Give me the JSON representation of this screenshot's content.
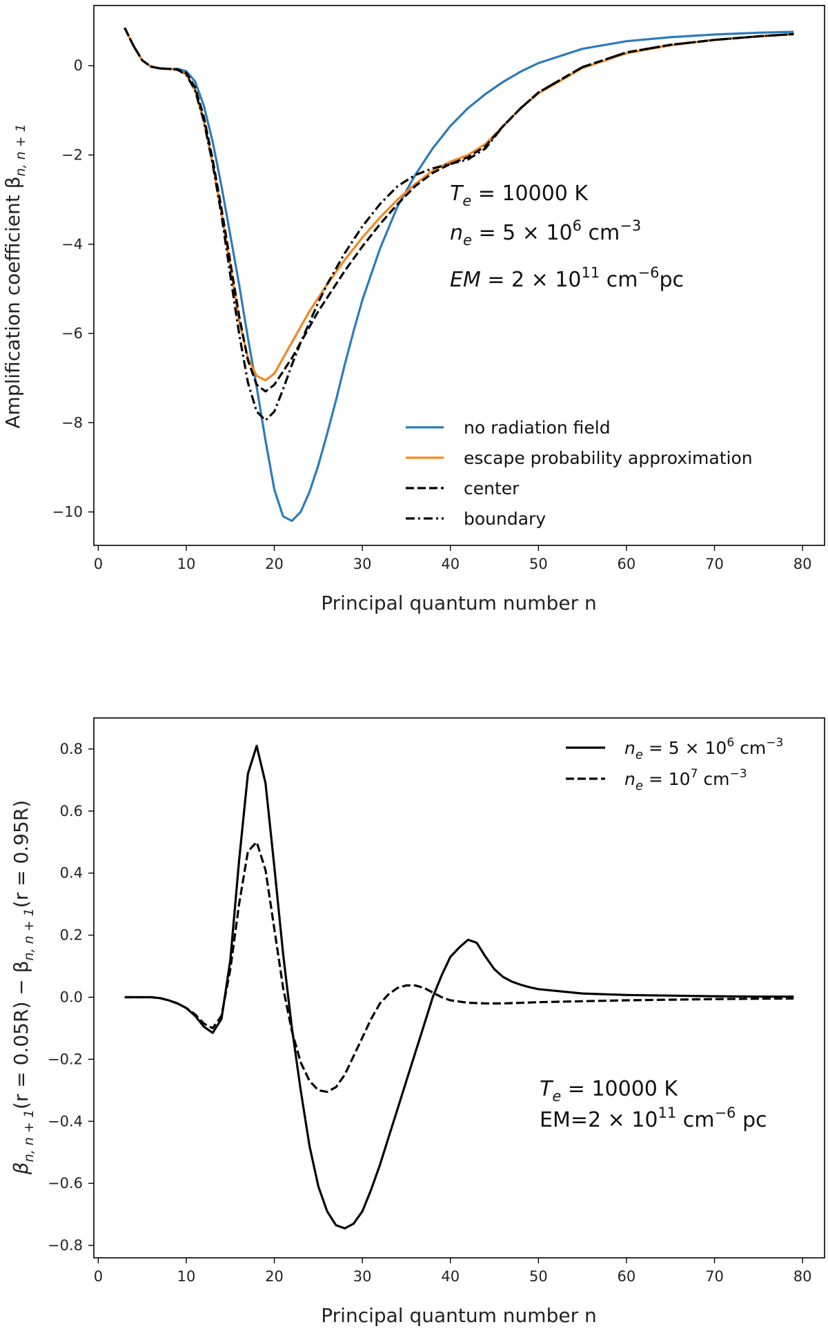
{
  "chart_data": [
    {
      "type": "line",
      "title": "",
      "xlabel": "Principal quantum number n",
      "ylabel": "Amplification coefficient β",
      "ylabel_sub": "n, n + 1",
      "xlim": [
        -0.5,
        82.5
      ],
      "ylim": [
        -10.75,
        1.35
      ],
      "xticks": [
        0,
        10,
        20,
        30,
        40,
        50,
        60,
        70,
        80
      ],
      "yticks": [
        0,
        -2,
        -4,
        -6,
        -8,
        -10
      ],
      "ytick_labels": [
        "0",
        "−2",
        "−4",
        "−6",
        "−8",
        "−10"
      ],
      "grid": false,
      "legend_position": "lower-right",
      "annotations": [
        {
          "var": "T",
          "sub": "e",
          "text": " = 10000 K"
        },
        {
          "var": "n",
          "sub": "e",
          "text": " = 5 × 10",
          "sup": "6",
          "tail": " cm",
          "tail_sup": "−3"
        },
        {
          "var": "EM",
          "sub": "",
          "text": " = 2 × 10",
          "sup": "11",
          "tail": " cm",
          "tail_sup": "−6",
          "end": "pc"
        }
      ],
      "series": [
        {
          "name": "no radiation field",
          "color": "#2b7bba",
          "dash": "solid",
          "x": [
            3,
            4,
            5,
            6,
            7,
            8,
            9,
            10,
            11,
            12,
            13,
            14,
            15,
            16,
            17,
            18,
            19,
            20,
            21,
            22,
            23,
            24,
            25,
            26,
            27,
            28,
            29,
            30,
            32,
            34,
            36,
            38,
            40,
            42,
            44,
            46,
            48,
            50,
            55,
            60,
            65,
            70,
            75,
            79
          ],
          "y": [
            0.85,
            0.45,
            0.12,
            -0.02,
            -0.06,
            -0.07,
            -0.07,
            -0.12,
            -0.35,
            -0.9,
            -1.7,
            -2.7,
            -3.8,
            -4.9,
            -6.1,
            -7.2,
            -8.4,
            -9.5,
            -10.1,
            -10.2,
            -10.0,
            -9.55,
            -8.95,
            -8.25,
            -7.5,
            -6.7,
            -5.95,
            -5.25,
            -4.1,
            -3.15,
            -2.45,
            -1.85,
            -1.35,
            -0.95,
            -0.63,
            -0.36,
            -0.13,
            0.06,
            0.38,
            0.55,
            0.64,
            0.7,
            0.74,
            0.76
          ]
        },
        {
          "name": "escape probability approximation",
          "color": "#f5871f",
          "dash": "solid",
          "x": [
            3,
            4,
            5,
            6,
            7,
            8,
            9,
            10,
            11,
            12,
            13,
            14,
            15,
            16,
            17,
            18,
            19,
            20,
            21,
            22,
            23,
            24,
            25,
            26,
            28,
            30,
            32,
            34,
            36,
            38,
            40,
            42,
            44,
            46,
            48,
            50,
            55,
            60,
            65,
            70,
            75,
            79
          ],
          "y": [
            0.85,
            0.45,
            0.12,
            -0.02,
            -0.06,
            -0.07,
            -0.09,
            -0.2,
            -0.55,
            -1.25,
            -2.2,
            -3.3,
            -4.5,
            -5.7,
            -6.55,
            -6.95,
            -7.05,
            -6.9,
            -6.55,
            -6.2,
            -5.85,
            -5.5,
            -5.2,
            -4.9,
            -4.35,
            -3.85,
            -3.4,
            -3.0,
            -2.65,
            -2.35,
            -2.15,
            -2.0,
            -1.75,
            -1.35,
            -0.95,
            -0.62,
            -0.05,
            0.28,
            0.46,
            0.58,
            0.66,
            0.71
          ]
        },
        {
          "name": "center",
          "color": "#000000",
          "dash": "dashed",
          "x": [
            3,
            4,
            5,
            6,
            7,
            8,
            9,
            10,
            11,
            12,
            13,
            14,
            15,
            16,
            17,
            18,
            19,
            20,
            21,
            22,
            23,
            24,
            25,
            26,
            28,
            30,
            32,
            34,
            36,
            38,
            40,
            42,
            44,
            46,
            48,
            50,
            55,
            60,
            65,
            70,
            75,
            79
          ],
          "y": [
            0.85,
            0.45,
            0.12,
            -0.02,
            -0.06,
            -0.07,
            -0.08,
            -0.16,
            -0.48,
            -1.15,
            -2.1,
            -3.2,
            -4.4,
            -5.6,
            -6.6,
            -7.15,
            -7.3,
            -7.15,
            -6.85,
            -6.55,
            -6.2,
            -5.85,
            -5.5,
            -5.2,
            -4.6,
            -4.05,
            -3.55,
            -3.1,
            -2.7,
            -2.4,
            -2.2,
            -2.05,
            -1.8,
            -1.35,
            -0.95,
            -0.6,
            -0.03,
            0.3,
            0.47,
            0.58,
            0.66,
            0.71
          ]
        },
        {
          "name": "boundary",
          "color": "#000000",
          "dash": "dashdot",
          "x": [
            3,
            4,
            5,
            6,
            7,
            8,
            9,
            10,
            11,
            12,
            13,
            14,
            15,
            16,
            17,
            18,
            19,
            20,
            21,
            22,
            23,
            24,
            25,
            26,
            28,
            30,
            32,
            34,
            36,
            38,
            40,
            42,
            44,
            46,
            48,
            50,
            55,
            60,
            65,
            70,
            75,
            79
          ],
          "y": [
            0.85,
            0.45,
            0.12,
            -0.02,
            -0.06,
            -0.07,
            -0.09,
            -0.2,
            -0.55,
            -1.25,
            -2.2,
            -3.35,
            -4.7,
            -6.0,
            -7.1,
            -7.75,
            -7.95,
            -7.75,
            -7.25,
            -6.7,
            -6.2,
            -5.75,
            -5.3,
            -4.9,
            -4.2,
            -3.6,
            -3.1,
            -2.7,
            -2.45,
            -2.3,
            -2.2,
            -2.1,
            -1.85,
            -1.35,
            -0.95,
            -0.6,
            -0.03,
            0.3,
            0.47,
            0.58,
            0.66,
            0.71
          ]
        }
      ]
    },
    {
      "type": "line",
      "title": "",
      "xlabel": "Principal quantum number n",
      "ylabel": "β",
      "ylabel_sub1": "n, n + 1",
      "ylabel_mid": "(r = 0.05R) − β",
      "ylabel_sub2": "n, n + 1",
      "ylabel_end": "(r = 0.95R)",
      "xlim": [
        -0.5,
        82.5
      ],
      "ylim": [
        -0.84,
        0.9
      ],
      "xticks": [
        0,
        10,
        20,
        30,
        40,
        50,
        60,
        70,
        80
      ],
      "yticks": [
        0.8,
        0.6,
        0.4,
        0.2,
        0.0,
        -0.2,
        -0.4,
        -0.6,
        -0.8
      ],
      "ytick_labels": [
        "0.8",
        "0.6",
        "0.4",
        "0.2",
        "0.0",
        "−0.2",
        "−0.4",
        "−0.6",
        "−0.8"
      ],
      "grid": false,
      "legend_position": "top-right",
      "annotations": [
        {
          "var": "T",
          "sub": "e",
          "text": " = 10000 K"
        },
        {
          "var": "",
          "sub": "",
          "text": "EM=2 × 10",
          "sup": "11",
          "tail": " cm",
          "tail_sup": "−6",
          "end": " pc"
        }
      ],
      "series": [
        {
          "name": "n",
          "name_sub": "e",
          "name_rest": " = 5 × 10",
          "name_sup": "6",
          "name_tail": " cm",
          "name_tail_sup": "−3",
          "color": "#000000",
          "dash": "solid",
          "x": [
            3,
            4,
            5,
            6,
            7,
            8,
            9,
            10,
            11,
            12,
            13,
            14,
            15,
            16,
            17,
            18,
            19,
            20,
            21,
            22,
            23,
            24,
            25,
            26,
            27,
            28,
            29,
            30,
            31,
            32,
            33,
            34,
            35,
            36,
            37,
            38,
            39,
            40,
            41,
            42,
            43,
            44,
            45,
            46,
            47,
            48,
            49,
            50,
            55,
            60,
            65,
            70,
            75,
            79
          ],
          "y": [
            0,
            0,
            0,
            0,
            -0.003,
            -0.01,
            -0.02,
            -0.035,
            -0.06,
            -0.095,
            -0.115,
            -0.07,
            0.12,
            0.44,
            0.72,
            0.81,
            0.69,
            0.42,
            0.14,
            -0.1,
            -0.3,
            -0.48,
            -0.61,
            -0.69,
            -0.735,
            -0.745,
            -0.73,
            -0.69,
            -0.62,
            -0.54,
            -0.45,
            -0.36,
            -0.27,
            -0.18,
            -0.09,
            0.0,
            0.07,
            0.13,
            0.16,
            0.185,
            0.175,
            0.13,
            0.09,
            0.065,
            0.05,
            0.04,
            0.032,
            0.026,
            0.012,
            0.007,
            0.005,
            0.003,
            0.002,
            0.002
          ]
        },
        {
          "name": "n",
          "name_sub": "e",
          "name_rest": " = 10",
          "name_sup": "7",
          "name_tail": " cm",
          "name_tail_sup": "−3",
          "color": "#000000",
          "dash": "dashed",
          "x": [
            3,
            4,
            5,
            6,
            7,
            8,
            9,
            10,
            11,
            12,
            13,
            14,
            15,
            16,
            17,
            18,
            19,
            20,
            21,
            22,
            23,
            24,
            25,
            26,
            27,
            28,
            29,
            30,
            31,
            32,
            33,
            34,
            35,
            36,
            37,
            38,
            39,
            40,
            42,
            44,
            46,
            48,
            50,
            55,
            60,
            65,
            70,
            75,
            79
          ],
          "y": [
            0,
            0,
            0,
            0,
            -0.003,
            -0.01,
            -0.02,
            -0.035,
            -0.055,
            -0.085,
            -0.1,
            -0.06,
            0.09,
            0.3,
            0.47,
            0.5,
            0.41,
            0.22,
            0.03,
            -0.11,
            -0.21,
            -0.27,
            -0.3,
            -0.305,
            -0.29,
            -0.25,
            -0.19,
            -0.13,
            -0.07,
            -0.02,
            0.01,
            0.03,
            0.038,
            0.038,
            0.03,
            0.015,
            0.0,
            -0.01,
            -0.018,
            -0.02,
            -0.02,
            -0.018,
            -0.016,
            -0.013,
            -0.01,
            -0.008,
            -0.006,
            -0.005,
            -0.004
          ]
        }
      ]
    }
  ]
}
